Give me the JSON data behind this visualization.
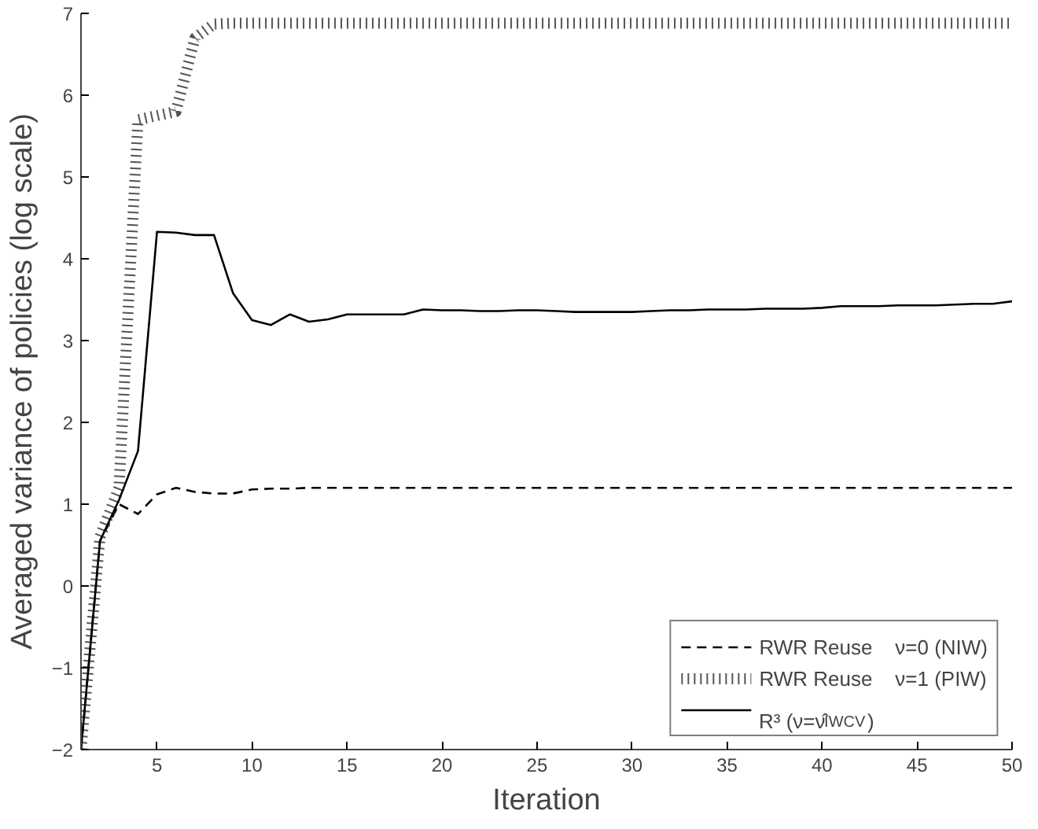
{
  "chart_data": {
    "type": "line",
    "xlabel": "Iteration",
    "ylabel": "Averaged variance of policies (log scale)",
    "x": [
      1,
      2,
      3,
      4,
      5,
      6,
      7,
      8,
      9,
      10,
      11,
      12,
      13,
      14,
      15,
      16,
      17,
      18,
      19,
      20,
      21,
      22,
      23,
      24,
      25,
      26,
      27,
      28,
      29,
      30,
      31,
      32,
      33,
      34,
      35,
      36,
      37,
      38,
      39,
      40,
      41,
      42,
      43,
      44,
      45,
      46,
      47,
      48,
      49,
      50
    ],
    "xlim": [
      1,
      50
    ],
    "xticks": [
      5,
      10,
      15,
      20,
      25,
      30,
      35,
      40,
      45,
      50
    ],
    "ylim": [
      -2,
      7
    ],
    "yticks": [
      -2,
      -1,
      0,
      1,
      2,
      3,
      4,
      5,
      6,
      7
    ],
    "grid": false,
    "legend": "bottom right",
    "marker": "none",
    "series": [
      {
        "name": "RWR Reuse    ν=0 (NIW)",
        "color": "#000000",
        "line_style": "dashed",
        "values": [
          -2,
          0.55,
          1.0,
          0.88,
          1.12,
          1.2,
          1.15,
          1.13,
          1.13,
          1.18,
          1.19,
          1.19,
          1.2,
          1.2,
          1.2,
          1.2,
          1.2,
          1.2,
          1.2,
          1.2,
          1.2,
          1.2,
          1.2,
          1.2,
          1.2,
          1.2,
          1.2,
          1.2,
          1.2,
          1.2,
          1.2,
          1.2,
          1.2,
          1.2,
          1.2,
          1.2,
          1.2,
          1.2,
          1.2,
          1.2,
          1.2,
          1.2,
          1.2,
          1.2,
          1.2,
          1.2,
          1.2,
          1.2,
          1.2,
          1.2
        ]
      },
      {
        "name": "RWR Reuse    ν=1 (PIW)",
        "color": "#555555",
        "line_style": "dotted",
        "values": [
          -2,
          0.6,
          1.2,
          5.7,
          5.75,
          5.8,
          6.7,
          6.87,
          6.88,
          6.88,
          6.88,
          6.88,
          6.88,
          6.88,
          6.88,
          6.88,
          6.88,
          6.88,
          6.88,
          6.88,
          6.88,
          6.88,
          6.88,
          6.88,
          6.88,
          6.88,
          6.88,
          6.88,
          6.88,
          6.88,
          6.88,
          6.88,
          6.88,
          6.88,
          6.88,
          6.88,
          6.88,
          6.88,
          6.88,
          6.88,
          6.88,
          6.88,
          6.88,
          6.88,
          6.88,
          6.88,
          6.88,
          6.88,
          6.88,
          6.88
        ]
      },
      {
        "name": "R³ (ν=ν̂$_{IWCV}$)",
        "color": "#000000",
        "line_style": "solid",
        "values": [
          -2,
          0.55,
          1.05,
          1.65,
          4.33,
          4.32,
          4.29,
          4.29,
          3.58,
          3.25,
          3.19,
          3.32,
          3.23,
          3.26,
          3.32,
          3.32,
          3.32,
          3.32,
          3.38,
          3.37,
          3.37,
          3.36,
          3.36,
          3.37,
          3.37,
          3.36,
          3.35,
          3.35,
          3.35,
          3.35,
          3.36,
          3.37,
          3.37,
          3.38,
          3.38,
          3.38,
          3.39,
          3.39,
          3.39,
          3.4,
          3.42,
          3.42,
          3.42,
          3.43,
          3.43,
          3.43,
          3.44,
          3.45,
          3.45,
          3.48
        ]
      }
    ]
  }
}
